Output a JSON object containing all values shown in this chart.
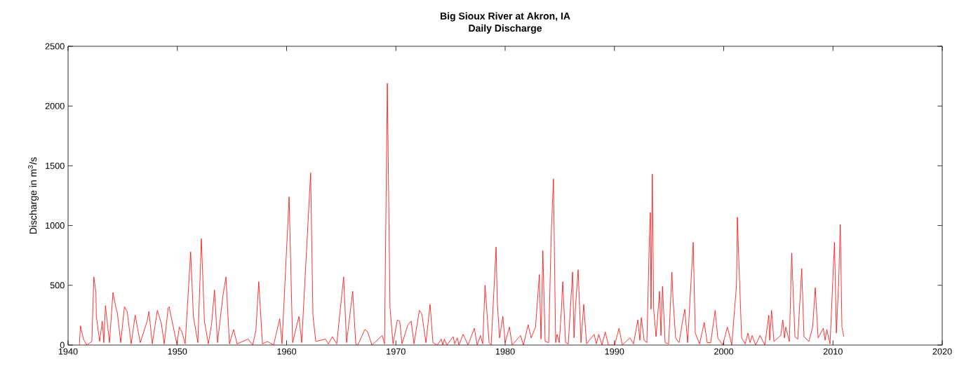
{
  "chart_data": {
    "type": "line",
    "title": "Big Sioux River at Akron, IA",
    "subtitle": "Daily Discharge",
    "ylabel": "Discharge in m$^{3}$/s",
    "xlim": [
      1940,
      2020
    ],
    "ylim": [
      0,
      2500
    ],
    "xticks": [
      1940,
      1950,
      1960,
      1970,
      1980,
      1990,
      2000,
      2010,
      2020
    ],
    "yticks": [
      0,
      500,
      1000,
      1500,
      2000,
      2500
    ],
    "marker": "none",
    "line_style": "solid",
    "x": [
      1941.03,
      1941.14,
      1941.41,
      1941.71,
      1942.18,
      1942.36,
      1942.55,
      1942.59,
      1942.89,
      1943.13,
      1943.27,
      1943.42,
      1943.79,
      1944.11,
      1944.41,
      1944.51,
      1944.82,
      1945.16,
      1945.41,
      1945.78,
      1946.14,
      1946.61,
      1947.24,
      1947.4,
      1947.71,
      1948.17,
      1948.54,
      1948.8,
      1949.16,
      1949.25,
      1949.95,
      1950.19,
      1950.42,
      1950.72,
      1951.22,
      1951.47,
      1951.88,
      1952.2,
      1952.48,
      1952.84,
      1953.14,
      1953.4,
      1953.68,
      1954.17,
      1954.45,
      1954.77,
      1955.15,
      1955.47,
      1956.48,
      1956.89,
      1957.19,
      1957.45,
      1957.79,
      1958.24,
      1958.81,
      1959.37,
      1959.58,
      1960.23,
      1960.55,
      1961.13,
      1961.38,
      1962.2,
      1962.41,
      1962.67,
      1963.55,
      1963.82,
      1964.19,
      1964.59,
      1965.22,
      1965.49,
      1966.05,
      1966.33,
      1966.52,
      1967.16,
      1967.42,
      1967.8,
      1968.75,
      1968.96,
      1969.22,
      1969.46,
      1969.74,
      1970.13,
      1970.35,
      1970.56,
      1971.1,
      1971.4,
      1971.66,
      1972.15,
      1972.38,
      1972.75,
      1973.13,
      1973.39,
      1973.78,
      1974.16,
      1974.29,
      1974.44,
      1974.67,
      1975.25,
      1975.38,
      1975.62,
      1975.77,
      1976.15,
      1976.61,
      1977.18,
      1977.44,
      1977.74,
      1977.95,
      1978.16,
      1978.53,
      1978.72,
      1979.17,
      1979.28,
      1979.49,
      1979.79,
      1980.0,
      1980.39,
      1980.64,
      1981.41,
      1981.67,
      1982.1,
      1982.38,
      1982.78,
      1983.13,
      1983.28,
      1983.45,
      1983.66,
      1983.98,
      1984.22,
      1984.42,
      1984.62,
      1984.75,
      1984.95,
      1985.14,
      1985.27,
      1985.53,
      1985.78,
      1986.17,
      1986.3,
      1986.44,
      1986.68,
      1986.94,
      1987.19,
      1987.45,
      1988.14,
      1988.35,
      1988.56,
      1988.86,
      1989.16,
      1989.44,
      1990.02,
      1990.42,
      1990.72,
      1991.41,
      1991.75,
      1992.14,
      1992.33,
      1992.46,
      1992.72,
      1992.97,
      1993.18,
      1993.29,
      1993.35,
      1993.47,
      1993.59,
      1993.81,
      1994.13,
      1994.26,
      1994.4,
      1994.64,
      1994.96,
      1995.26,
      1995.36,
      1995.6,
      1995.92,
      1996.2,
      1996.44,
      1996.7,
      1997.21,
      1997.4,
      1997.79,
      1998.22,
      1998.49,
      1998.81,
      1999.22,
      1999.46,
      1999.91,
      2000.34,
      2000.74,
      2001.17,
      2001.25,
      2001.4,
      2001.64,
      2001.96,
      2002.22,
      2002.41,
      2002.6,
      2002.92,
      2003.33,
      2003.76,
      2004.13,
      2004.21,
      2004.38,
      2004.6,
      2005.22,
      2005.41,
      2005.56,
      2005.68,
      2006.01,
      2006.22,
      2006.52,
      2006.78,
      2007.14,
      2007.35,
      2007.8,
      2008.14,
      2008.38,
      2008.64,
      2009.11,
      2009.28,
      2009.43,
      2009.73,
      2010.14,
      2010.31,
      2010.52,
      2010.67,
      2010.82,
      2010.99
    ],
    "series": [
      {
        "color": "#ff0000",
        "values": [
          0,
          160,
          50,
          0,
          30,
          570,
          440,
          240,
          30,
          200,
          20,
          330,
          20,
          440,
          300,
          270,
          20,
          320,
          280,
          10,
          250,
          20,
          200,
          280,
          10,
          290,
          180,
          10,
          310,
          320,
          10,
          150,
          110,
          10,
          780,
          240,
          20,
          890,
          200,
          10,
          180,
          460,
          20,
          410,
          570,
          10,
          130,
          10,
          50,
          0,
          120,
          530,
          10,
          30,
          0,
          220,
          10,
          1240,
          20,
          240,
          20,
          1440,
          250,
          30,
          50,
          10,
          70,
          10,
          570,
          20,
          450,
          10,
          0,
          130,
          110,
          0,
          80,
          10,
          2190,
          320,
          10,
          210,
          200,
          10,
          170,
          200,
          10,
          290,
          260,
          20,
          340,
          20,
          0,
          50,
          0,
          50,
          0,
          70,
          10,
          60,
          0,
          90,
          0,
          140,
          0,
          80,
          10,
          500,
          20,
          0,
          820,
          360,
          60,
          240,
          20,
          150,
          0,
          80,
          0,
          170,
          60,
          150,
          590,
          50,
          790,
          30,
          20,
          940,
          1390,
          20,
          90,
          20,
          280,
          530,
          20,
          10,
          610,
          60,
          320,
          630,
          20,
          340,
          10,
          90,
          10,
          90,
          0,
          110,
          0,
          0,
          140,
          0,
          60,
          10,
          210,
          40,
          230,
          40,
          20,
          820,
          1110,
          300,
          1430,
          300,
          70,
          450,
          80,
          490,
          20,
          10,
          610,
          390,
          60,
          20,
          180,
          300,
          20,
          860,
          100,
          10,
          190,
          20,
          20,
          290,
          60,
          0,
          150,
          0,
          500,
          1070,
          670,
          60,
          10,
          100,
          20,
          80,
          0,
          80,
          0,
          250,
          40,
          290,
          30,
          80,
          210,
          60,
          150,
          30,
          770,
          70,
          50,
          640,
          70,
          30,
          150,
          480,
          60,
          140,
          40,
          130,
          10,
          860,
          100,
          520,
          1010,
          150,
          70
        ]
      }
    ]
  }
}
